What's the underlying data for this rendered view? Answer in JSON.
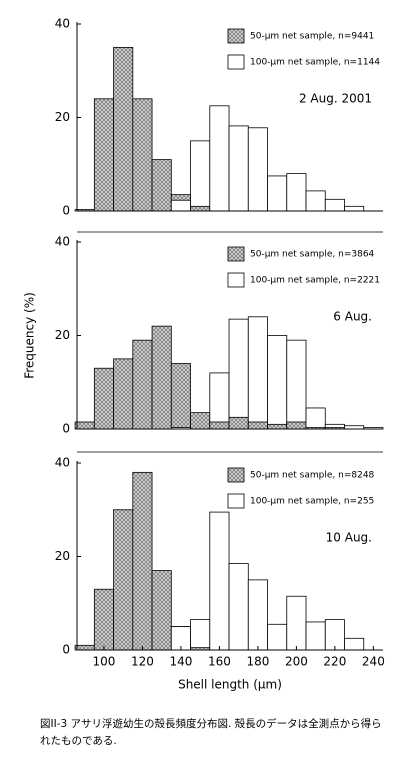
{
  "chart_data": [
    {
      "type": "histogram",
      "subtitle": "2 Aug. 2001",
      "legend": "upper right",
      "bins": [
        85,
        95,
        105,
        115,
        125,
        135,
        145,
        155,
        165,
        175,
        185,
        195,
        205,
        215,
        225,
        235,
        245
      ],
      "xlim": [
        86,
        245
      ],
      "ylim": [
        0,
        40
      ],
      "yticks": [
        0,
        20,
        40
      ],
      "series": [
        {
          "name": "50-µm net sample, n=9441",
          "color": "#b8b8b8",
          "hatch": true,
          "values": [
            0.3,
            24,
            35,
            24,
            11,
            3.5,
            1,
            0,
            0,
            0,
            0,
            0,
            0,
            0,
            0,
            0
          ]
        },
        {
          "name": "100-µm net sample, n=1144",
          "color": "#ffffff",
          "hatch": false,
          "values": [
            0,
            0,
            0,
            0,
            0,
            2.3,
            15,
            22.5,
            18.2,
            17.8,
            7.5,
            8,
            4.3,
            2.5,
            1,
            0
          ]
        }
      ]
    },
    {
      "type": "histogram",
      "subtitle": "6 Aug.",
      "legend": "upper right",
      "ylabel": "Frequency (%)",
      "bins": [
        85,
        95,
        105,
        115,
        125,
        135,
        145,
        155,
        165,
        175,
        185,
        195,
        205,
        215,
        225,
        235,
        245
      ],
      "xlim": [
        86,
        245
      ],
      "ylim": [
        0,
        40
      ],
      "yticks": [
        0,
        20,
        40
      ],
      "series": [
        {
          "name": "50-µm net sample, n=3864",
          "color": "#b8b8b8",
          "hatch": true,
          "values": [
            1.5,
            13,
            15,
            19,
            22,
            14,
            3.5,
            1.5,
            2.5,
            1.5,
            1,
            1.5,
            0.3,
            0.3,
            0,
            0
          ]
        },
        {
          "name": "100-µm net sample, n=2221",
          "color": "#ffffff",
          "hatch": false,
          "values": [
            0,
            0,
            0,
            0,
            0,
            0.3,
            0,
            12,
            23.5,
            24,
            20,
            19,
            4.5,
            1,
            0.7,
            0.3
          ]
        }
      ]
    },
    {
      "type": "histogram",
      "subtitle": "10 Aug.",
      "legend": "upper right",
      "xlabel": "Shell length (µm)",
      "bins": [
        85,
        95,
        105,
        115,
        125,
        135,
        145,
        155,
        165,
        175,
        185,
        195,
        205,
        215,
        225,
        235,
        245
      ],
      "xlim": [
        86,
        245
      ],
      "ylim": [
        0,
        40
      ],
      "yticks": [
        0,
        20,
        40
      ],
      "xticks": [
        100,
        120,
        140,
        160,
        180,
        200,
        220,
        240
      ],
      "series": [
        {
          "name": "50-µm net sample, n=8248",
          "color": "#b8b8b8",
          "hatch": true,
          "values": [
            1,
            13,
            30,
            38,
            17,
            5,
            0.5,
            0,
            0,
            0,
            0,
            0,
            0,
            0,
            0,
            0
          ]
        },
        {
          "name": "100-µm net sample, n=255",
          "color": "#ffffff",
          "hatch": false,
          "values": [
            0,
            0,
            0,
            0,
            0,
            5,
            6.5,
            29.5,
            18.5,
            15,
            5.5,
            11.5,
            6,
            6.5,
            2.5,
            0
          ]
        }
      ]
    }
  ],
  "caption": "図II-3 アサリ浮遊幼生の殻長頻度分布図. 殻長のデータは全測点から得られたものである."
}
